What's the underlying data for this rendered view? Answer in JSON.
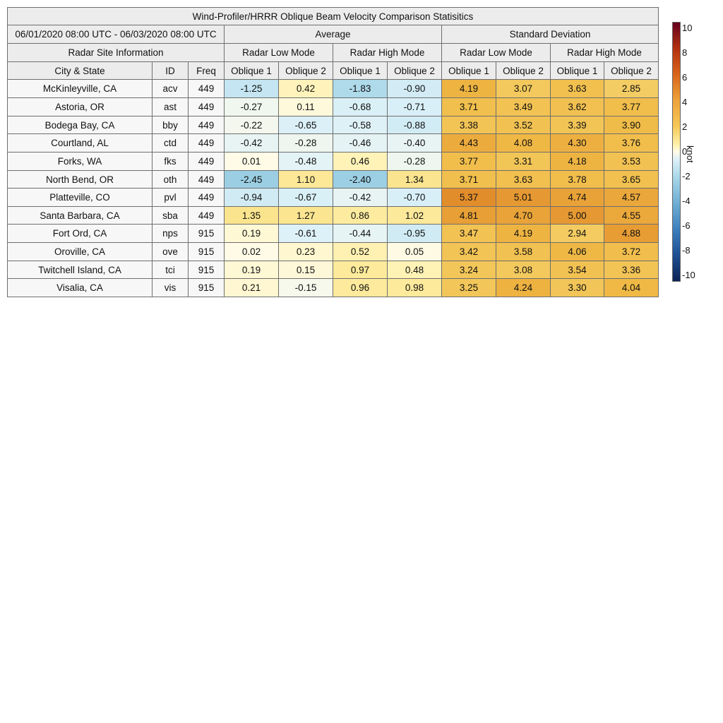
{
  "title": "Wind-Profiler/HRRR Oblique Beam Velocity Comparison Statisitics",
  "period": "06/01/2020 08:00 UTC - 06/03/2020 08:00 UTC",
  "group_average": "Average",
  "group_std": "Standard Deviation",
  "site_info_label": "Radar Site Information",
  "mode_labels": [
    "Radar Low Mode",
    "Radar High Mode",
    "Radar Low Mode",
    "Radar High Mode"
  ],
  "col_city": "City & State",
  "col_id": "ID",
  "col_freq": "Freq",
  "beam_labels": [
    "Oblique 1",
    "Oblique 2",
    "Oblique 1",
    "Oblique 2",
    "Oblique 1",
    "Oblique 2",
    "Oblique 1",
    "Oblique 2"
  ],
  "colorbar": {
    "label": "knot",
    "ticks": [
      "10",
      "8",
      "6",
      "4",
      "2",
      "0",
      "-2",
      "-4",
      "-6",
      "-8",
      "-10"
    ],
    "range": [
      -10,
      10
    ],
    "colormap": "diverging blue-white-orange-red"
  },
  "chart_data": {
    "type": "table",
    "title": "Wind-Profiler/HRRR Oblique Beam Velocity Comparison Statisitics",
    "columns": [
      "City & State",
      "ID",
      "Freq",
      "Average Radar Low Mode Oblique 1",
      "Average Radar Low Mode Oblique 2",
      "Average Radar High Mode Oblique 1",
      "Average Radar High Mode Oblique 2",
      "Standard Deviation Radar Low Mode Oblique 1",
      "Standard Deviation Radar Low Mode Oblique 2",
      "Standard Deviation Radar High Mode Oblique 1",
      "Standard Deviation Radar High Mode Oblique 2"
    ],
    "rows": [
      {
        "city": "McKinleyville, CA",
        "id": "acv",
        "freq": "449",
        "values": [
          "-1.25",
          "0.42",
          "-1.83",
          "-0.90",
          "4.19",
          "3.07",
          "3.63",
          "2.85"
        ]
      },
      {
        "city": "Astoria, OR",
        "id": "ast",
        "freq": "449",
        "values": [
          "-0.27",
          "0.11",
          "-0.68",
          "-0.71",
          "3.71",
          "3.49",
          "3.62",
          "3.77"
        ]
      },
      {
        "city": "Bodega Bay, CA",
        "id": "bby",
        "freq": "449",
        "values": [
          "-0.22",
          "-0.65",
          "-0.58",
          "-0.88",
          "3.38",
          "3.52",
          "3.39",
          "3.90"
        ]
      },
      {
        "city": "Courtland, AL",
        "id": "ctd",
        "freq": "449",
        "values": [
          "-0.42",
          "-0.28",
          "-0.46",
          "-0.40",
          "4.43",
          "4.08",
          "4.30",
          "3.76"
        ]
      },
      {
        "city": "Forks, WA",
        "id": "fks",
        "freq": "449",
        "values": [
          "0.01",
          "-0.48",
          "0.46",
          "-0.28",
          "3.77",
          "3.31",
          "4.18",
          "3.53"
        ]
      },
      {
        "city": "North Bend, OR",
        "id": "oth",
        "freq": "449",
        "values": [
          "-2.45",
          "1.10",
          "-2.40",
          "1.34",
          "3.71",
          "3.63",
          "3.78",
          "3.65"
        ]
      },
      {
        "city": "Platteville, CO",
        "id": "pvl",
        "freq": "449",
        "values": [
          "-0.94",
          "-0.67",
          "-0.42",
          "-0.70",
          "5.37",
          "5.01",
          "4.74",
          "4.57"
        ]
      },
      {
        "city": "Santa Barbara, CA",
        "id": "sba",
        "freq": "449",
        "values": [
          "1.35",
          "1.27",
          "0.86",
          "1.02",
          "4.81",
          "4.70",
          "5.00",
          "4.55"
        ]
      },
      {
        "city": "Fort Ord, CA",
        "id": "nps",
        "freq": "915",
        "values": [
          "0.19",
          "-0.61",
          "-0.44",
          "-0.95",
          "3.47",
          "4.19",
          "2.94",
          "4.88"
        ]
      },
      {
        "city": "Oroville, CA",
        "id": "ove",
        "freq": "915",
        "values": [
          "0.02",
          "0.23",
          "0.52",
          "0.05",
          "3.42",
          "3.58",
          "4.06",
          "3.72"
        ]
      },
      {
        "city": "Twitchell Island, CA",
        "id": "tci",
        "freq": "915",
        "values": [
          "0.19",
          "0.15",
          "0.97",
          "0.48",
          "3.24",
          "3.08",
          "3.54",
          "3.36"
        ]
      },
      {
        "city": "Visalia, CA",
        "id": "vis",
        "freq": "915",
        "values": [
          "0.21",
          "-0.15",
          "0.96",
          "0.98",
          "3.25",
          "4.24",
          "3.30",
          "4.04"
        ]
      }
    ]
  }
}
